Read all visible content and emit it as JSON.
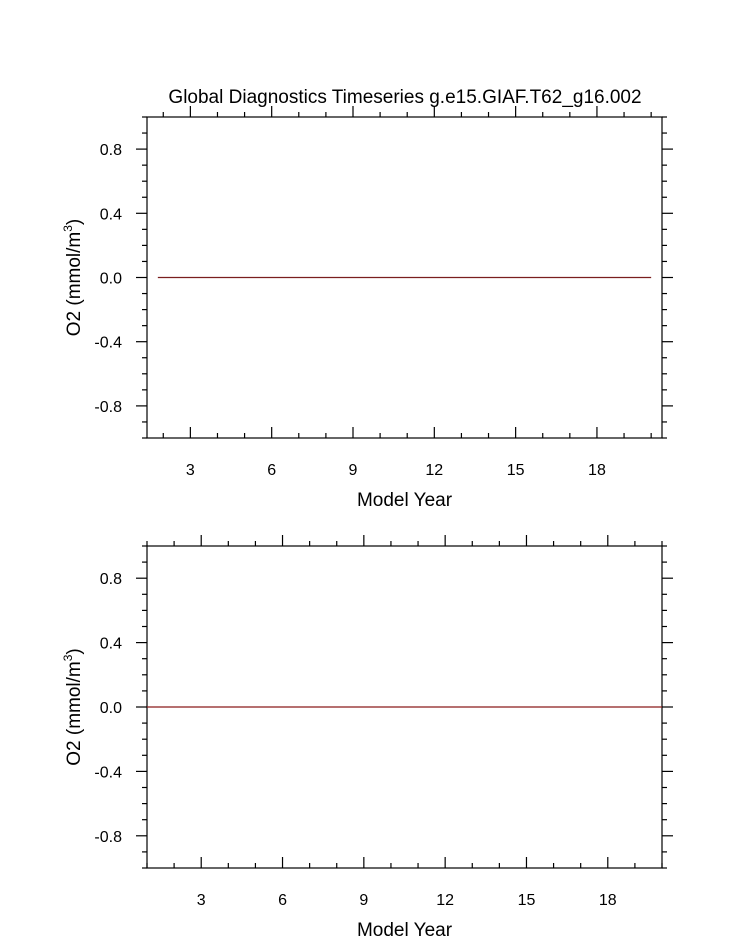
{
  "title": "Global Diagnostics Timeseries g.e15.GIAF.T62_g16.002",
  "chart_data": [
    {
      "type": "line",
      "xlabel": "Model Year",
      "ylabel_main": "O2 (mmol/m",
      "ylabel_sup": "3",
      "ylabel_close": ")",
      "xlim": [
        1.4,
        20.4
      ],
      "ylim": [
        -1.0,
        1.0
      ],
      "x_ticks": [
        3,
        6,
        9,
        12,
        15,
        18
      ],
      "x_tick_labels": [
        "3",
        "6",
        "9",
        "12",
        "15",
        "18"
      ],
      "y_ticks": [
        0.8,
        0.4,
        0.0,
        -0.4,
        -0.8
      ],
      "y_tick_labels": [
        "0.8",
        "0.4",
        "0.0",
        "-0.4",
        "-0.8"
      ],
      "series": [
        {
          "color": "#7a1e1e",
          "x": [
            1.8,
            20.0
          ],
          "y": [
            0.0,
            0.0
          ]
        }
      ]
    },
    {
      "type": "line",
      "xlabel": "Model Year",
      "ylabel_main": "O2 (mmol/m",
      "ylabel_sup": "3",
      "ylabel_close": ")",
      "xlim": [
        1.0,
        20.0
      ],
      "ylim": [
        -1.0,
        1.0
      ],
      "x_ticks": [
        3,
        6,
        9,
        12,
        15,
        18
      ],
      "x_tick_labels": [
        "3",
        "6",
        "9",
        "12",
        "15",
        "18"
      ],
      "y_ticks": [
        0.8,
        0.4,
        0.0,
        -0.4,
        -0.8
      ],
      "y_tick_labels": [
        "0.8",
        "0.4",
        "0.0",
        "-0.4",
        "-0.8"
      ],
      "series": [
        {
          "color": "#8b1a1a",
          "x": [
            1.0,
            20.0
          ],
          "y": [
            0.0,
            0.0
          ]
        }
      ]
    }
  ]
}
